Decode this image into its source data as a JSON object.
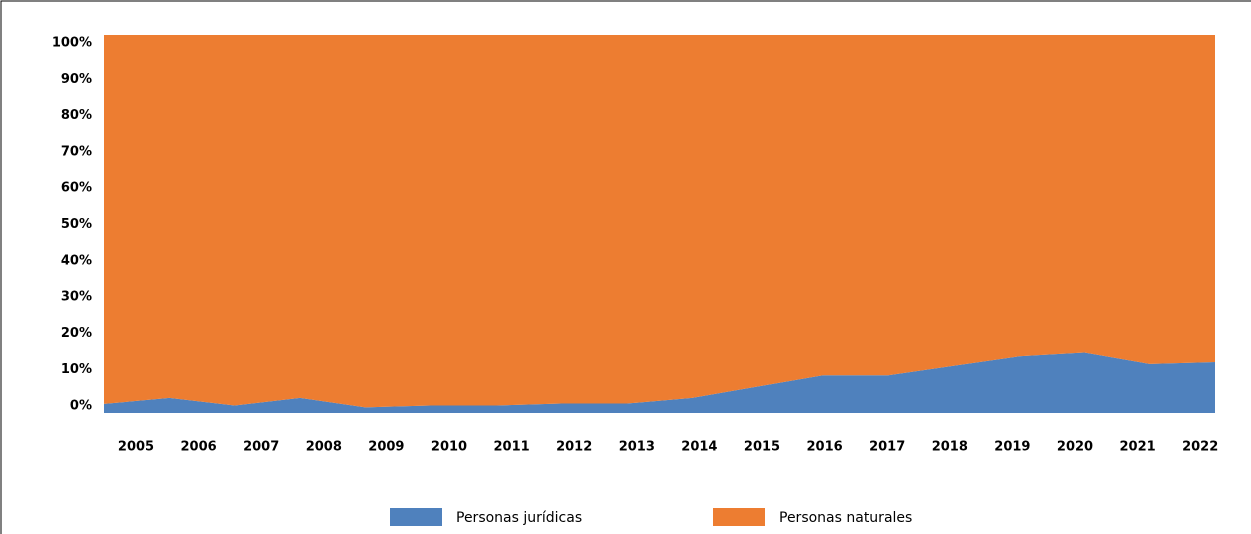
{
  "chart_data": {
    "type": "stacked_area_100",
    "categories": [
      "2005",
      "2006",
      "2007",
      "2008",
      "2009",
      "2010",
      "2011",
      "2012",
      "2013",
      "2014",
      "2015",
      "2016",
      "2017",
      "2018",
      "2019",
      "2020",
      "2021",
      "2022"
    ],
    "series": [
      {
        "name": "Personas jurídicas",
        "color": "#4f81bd",
        "values": [
          2.4,
          4,
          2,
          4,
          1.5,
          2,
          2,
          2.5,
          2.5,
          4,
          7,
          10,
          10,
          12.5,
          15,
          16,
          13,
          13.5
        ]
      },
      {
        "name": "Personas naturales",
        "color": "#ed7d31",
        "values": [
          97.6,
          96,
          98,
          96,
          98.5,
          98,
          98,
          97.5,
          97.5,
          96,
          93,
          90,
          90,
          87.5,
          85,
          84,
          87,
          86.5
        ]
      }
    ],
    "ylim": [
      0,
      100
    ],
    "yticks": [
      {
        "value": 0,
        "label": "0%"
      },
      {
        "value": 10,
        "label": "10%"
      },
      {
        "value": 20,
        "label": "20%"
      },
      {
        "value": 30,
        "label": "30%"
      },
      {
        "value": 40,
        "label": "40%"
      },
      {
        "value": 50,
        "label": "50%"
      },
      {
        "value": 60,
        "label": "60%"
      },
      {
        "value": 70,
        "label": "70%"
      },
      {
        "value": 80,
        "label": "80%"
      },
      {
        "value": 90,
        "label": "90%"
      },
      {
        "value": 100,
        "label": "100%"
      }
    ],
    "legend": "bottom"
  }
}
